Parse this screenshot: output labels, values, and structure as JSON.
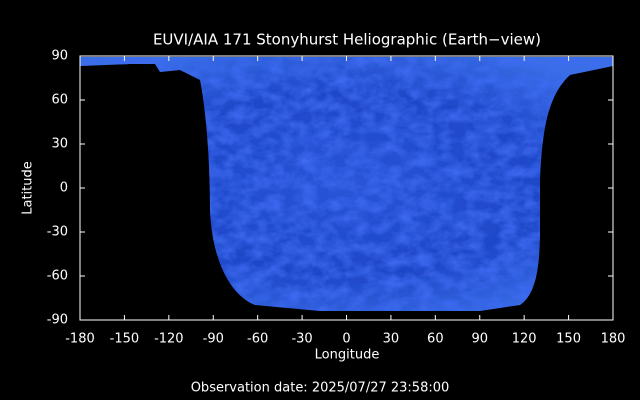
{
  "chart_data": {
    "type": "map",
    "title": "EUVI/AIA 171 Stonyhurst Heliographic (Earth−view)",
    "xlabel": "Longitude",
    "ylabel": "Latitude",
    "annotation": "Observation date: 2025/07/27 23:58:00",
    "xlim": [
      -180,
      180
    ],
    "ylim": [
      -90,
      90
    ],
    "xticks": [
      -180,
      -150,
      -120,
      -90,
      -60,
      -30,
      0,
      30,
      60,
      90,
      120,
      150,
      180
    ],
    "yticks": [
      -90,
      -60,
      -30,
      0,
      30,
      60,
      90
    ]
  }
}
